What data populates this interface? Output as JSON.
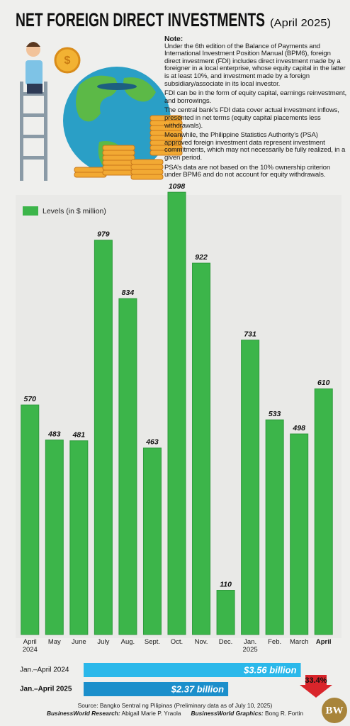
{
  "chart_data": [
    {
      "type": "bar",
      "title": "NET FOREIGN DIRECT INVESTMENTS",
      "subtitle": "(April 2025)",
      "note": {
        "heading": "Note:",
        "paragraphs": [
          "Under the 6th edition of the Balance of Payments and International Investment Position Manual (BPM6), foreign direct investment (FDI) includes direct investment made by a foreigner in a local enterprise, whose equity capital in the latter is at least 10%, and investment made by a foreign subsidiary/associate in its local investor.",
          "FDI can be in the form of equity capital, earnings reinvestment, and borrowings.",
          "The central bank’s FDI data cover actual investment inflows, presented in net terms (equity capital placements less withdrawals).",
          "Meanwhile, the Philippine Statistics Authority’s (PSA) approved foreign investment data represent investment commitments, which may not necessarily be fully realized, in a given period.",
          "PSA’s data are not based on the 10% ownership criterion under BPM6 and do not account for equity withdrawals."
        ]
      },
      "legend": "Levels (in $ million)",
      "categories": [
        "April 2024",
        "May",
        "June",
        "July",
        "Aug.",
        "Sept.",
        "Oct.",
        "Nov.",
        "Dec.",
        "Jan. 2025",
        "Feb.",
        "March",
        "April"
      ],
      "values": [
        570,
        483,
        481,
        979,
        834,
        463,
        1098,
        922,
        110,
        731,
        533,
        498,
        610
      ],
      "color": "#3cb54a",
      "ylim": [
        0,
        1100
      ]
    },
    {
      "type": "hbar",
      "categories": [
        "Jan.–April 2024",
        "Jan.–April 2025"
      ],
      "values": [
        3.56,
        2.37
      ],
      "value_labels": [
        "$3.56 billion",
        "$2.37 billion"
      ],
      "colors": [
        "#2bb8ea",
        "#1b8fcb"
      ],
      "xlim": [
        0,
        3.6
      ],
      "annotation": "33.4%"
    }
  ],
  "source": "Source: Bangko Sentral ng Pilipinas (Preliminary data as of July 10, 2025)",
  "credits": [
    {
      "role": "BusinessWorld Research:",
      "name": "Abigail Marie P. Yraola"
    },
    {
      "role": "BusinessWorld Graphics:",
      "name": "Bong R. Fortin"
    }
  ],
  "logo": "BW"
}
